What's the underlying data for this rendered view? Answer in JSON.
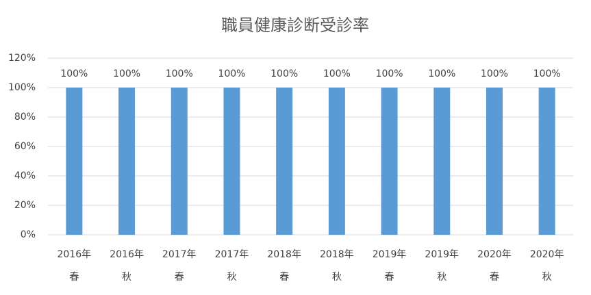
{
  "chart_data": {
    "type": "bar",
    "title": "職員健康診断受診率",
    "categories": [
      [
        "2016年",
        "春"
      ],
      [
        "2016年",
        "秋"
      ],
      [
        "2017年",
        "春"
      ],
      [
        "2017年",
        "秋"
      ],
      [
        "2018年",
        "春"
      ],
      [
        "2018年",
        "秋"
      ],
      [
        "2019年",
        "春"
      ],
      [
        "2019年",
        "秋"
      ],
      [
        "2020年",
        "春"
      ],
      [
        "2020年",
        "秋"
      ]
    ],
    "values": [
      100,
      100,
      100,
      100,
      100,
      100,
      100,
      100,
      100,
      100
    ],
    "value_labels": [
      "100%",
      "100%",
      "100%",
      "100%",
      "100%",
      "100%",
      "100%",
      "100%",
      "100%",
      "100%"
    ],
    "color": "#5b9bd5",
    "ylim": [
      0,
      120
    ],
    "yticks": [
      {
        "value": 0,
        "label": "0%"
      },
      {
        "value": 20,
        "label": "20%"
      },
      {
        "value": 40,
        "label": "40%"
      },
      {
        "value": 60,
        "label": "60%"
      },
      {
        "value": 80,
        "label": "80%"
      },
      {
        "value": 100,
        "label": "100%"
      },
      {
        "value": 120,
        "label": "120%"
      }
    ],
    "grid": true
  }
}
